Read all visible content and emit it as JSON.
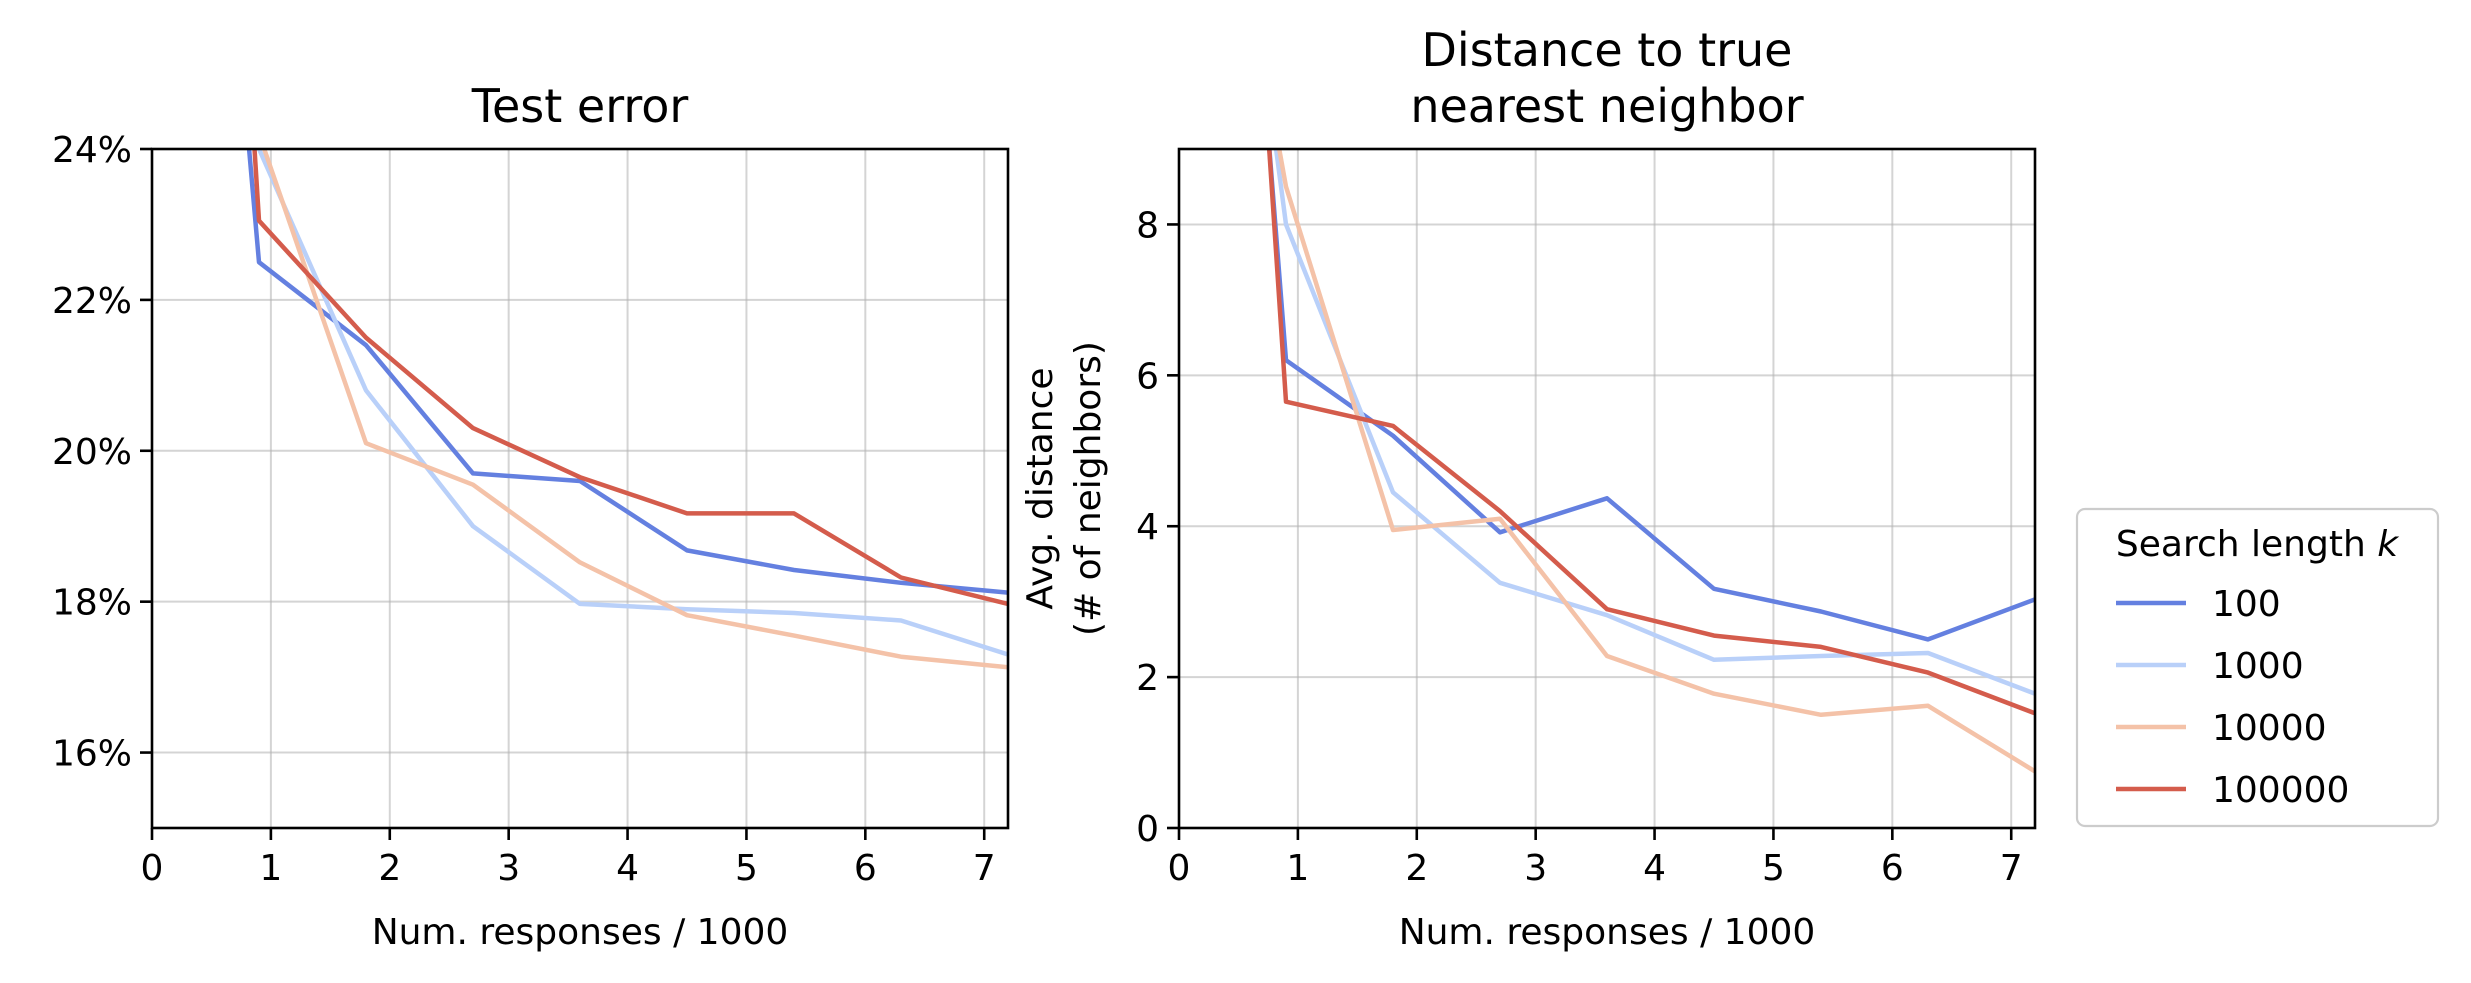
{
  "chart_data": [
    {
      "type": "line",
      "title": "Test error",
      "xlabel": "Num. responses / 1000",
      "ylabel": "",
      "xlim": [
        0,
        7.2
      ],
      "ylim": [
        15.0,
        24.0
      ],
      "xticks": [
        0,
        1,
        2,
        3,
        4,
        5,
        6,
        7
      ],
      "xtick_labels": [
        "0",
        "1",
        "2",
        "3",
        "4",
        "5",
        "6",
        "7"
      ],
      "yticks": [
        16,
        18,
        20,
        22,
        24
      ],
      "ytick_labels": [
        "16%",
        "18%",
        "20%",
        "22%",
        "24%"
      ],
      "grid": true,
      "series": [
        {
          "name": "100",
          "color": "#6480e0",
          "x": [
            0.8,
            0.9,
            1.8,
            2.7,
            3.6,
            4.5,
            5.4,
            6.3,
            7.2
          ],
          "y": [
            24.3,
            22.5,
            21.4,
            19.7,
            19.6,
            18.68,
            18.42,
            18.25,
            18.12
          ]
        },
        {
          "name": "1000",
          "color": "#b9d0f9",
          "x": [
            0.9,
            1.8,
            2.7,
            3.6,
            4.5,
            5.4,
            6.3,
            7.2
          ],
          "y": [
            24.0,
            20.8,
            19.0,
            17.97,
            17.9,
            17.85,
            17.75,
            17.3
          ]
        },
        {
          "name": "10000",
          "color": "#f4c2a8",
          "x": [
            0.9,
            1.8,
            2.7,
            3.6,
            4.5,
            5.4,
            6.3,
            7.2
          ],
          "y": [
            24.2,
            20.1,
            19.55,
            18.52,
            17.82,
            17.55,
            17.27,
            17.13
          ]
        },
        {
          "name": "100000",
          "color": "#d45c4c",
          "x": [
            0.85,
            0.9,
            1.8,
            2.7,
            3.6,
            4.5,
            5.4,
            6.3,
            7.2
          ],
          "y": [
            24.3,
            23.05,
            21.5,
            20.3,
            19.65,
            19.17,
            19.17,
            18.32,
            17.97
          ]
        }
      ]
    },
    {
      "type": "line",
      "title": "Distance to true\nnearest neighbor",
      "title_lines": [
        "Distance to true",
        "nearest neighbor"
      ],
      "xlabel": "Num. responses / 1000",
      "ylabel": "Avg. distance\n(# of neighbors)",
      "ylabel_lines": [
        "Avg. distance",
        "(# of neighbors)"
      ],
      "xlim": [
        0,
        7.2
      ],
      "ylim": [
        0,
        9
      ],
      "xticks": [
        0,
        1,
        2,
        3,
        4,
        5,
        6,
        7
      ],
      "xtick_labels": [
        "0",
        "1",
        "2",
        "3",
        "4",
        "5",
        "6",
        "7"
      ],
      "yticks": [
        0,
        2,
        4,
        6,
        8
      ],
      "ytick_labels": [
        "0",
        "2",
        "4",
        "6",
        "8"
      ],
      "grid": true,
      "series": [
        {
          "name": "100",
          "color": "#6480e0",
          "x": [
            0.75,
            0.9,
            1.8,
            2.7,
            3.6,
            4.5,
            5.4,
            6.3,
            7.2
          ],
          "y": [
            9.2,
            6.2,
            5.2,
            3.92,
            4.37,
            3.17,
            2.87,
            2.5,
            3.03
          ]
        },
        {
          "name": "1000",
          "color": "#b9d0f9",
          "x": [
            0.8,
            0.9,
            1.8,
            2.7,
            3.6,
            4.5,
            5.4,
            6.3,
            7.2
          ],
          "y": [
            9.2,
            8.0,
            4.45,
            3.25,
            2.82,
            2.23,
            2.28,
            2.32,
            1.78
          ]
        },
        {
          "name": "10000",
          "color": "#f4c2a8",
          "x": [
            0.82,
            0.9,
            1.8,
            2.7,
            3.6,
            4.5,
            5.4,
            6.3,
            7.2
          ],
          "y": [
            9.2,
            8.5,
            3.95,
            4.1,
            2.28,
            1.78,
            1.5,
            1.62,
            0.75
          ]
        },
        {
          "name": "100000",
          "color": "#d45c4c",
          "x": [
            0.75,
            0.9,
            1.8,
            2.7,
            3.6,
            4.5,
            5.4,
            6.3,
            7.2
          ],
          "y": [
            9.2,
            5.65,
            5.33,
            4.2,
            2.9,
            2.55,
            2.4,
            2.06,
            1.52
          ]
        }
      ]
    }
  ],
  "legend": {
    "title_prefix": "Search length ",
    "title_var": "k",
    "placement": "right",
    "entries": [
      {
        "label": "100",
        "color": "#6480e0"
      },
      {
        "label": "1000",
        "color": "#b9d0f9"
      },
      {
        "label": "10000",
        "color": "#f4c2a8"
      },
      {
        "label": "100000",
        "color": "#d45c4c"
      }
    ]
  }
}
